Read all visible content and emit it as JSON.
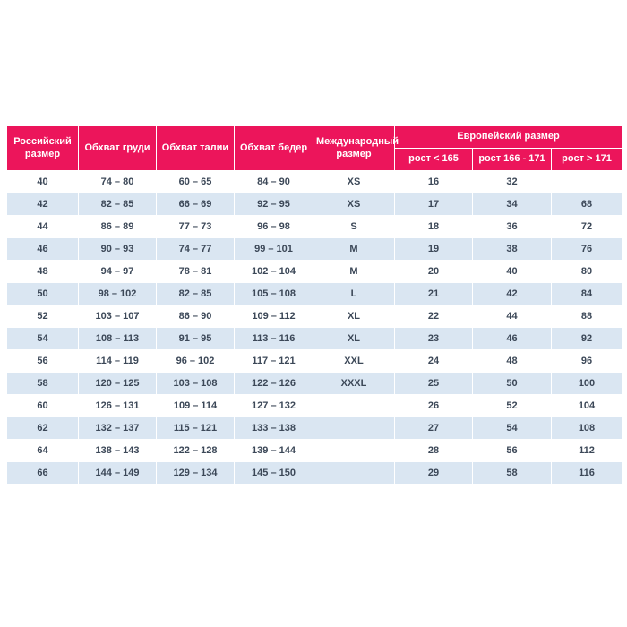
{
  "page": {
    "background": "#ffffff"
  },
  "table": {
    "colors": {
      "header_bg": "#EC155B",
      "header_text": "#ffffff",
      "row_alt_bg": "#DAE6F2",
      "row_bg": "#ffffff",
      "cell_text": "#3C4858"
    },
    "headers": {
      "russian_size": "Российский размер",
      "chest": "Обхват груди",
      "waist": "Обхват талии",
      "hips": "Обхват бедер",
      "international": "Международный размер",
      "european": "Европейский размер",
      "height_lt_165": "рост < 165",
      "height_166_171": "рост 166 - 171",
      "height_gt_171": "рост > 171"
    },
    "rows": [
      [
        "40",
        "74 – 80",
        "60 – 65",
        "84 – 90",
        "XS",
        "16",
        "32",
        ""
      ],
      [
        "42",
        "82 – 85",
        "66 – 69",
        "92 – 95",
        "XS",
        "17",
        "34",
        "68"
      ],
      [
        "44",
        "86 – 89",
        "77 – 73",
        "96 – 98",
        "S",
        "18",
        "36",
        "72"
      ],
      [
        "46",
        "90 – 93",
        "74 – 77",
        "99 – 101",
        "M",
        "19",
        "38",
        "76"
      ],
      [
        "48",
        "94 – 97",
        "78 – 81",
        "102 – 104",
        "M",
        "20",
        "40",
        "80"
      ],
      [
        "50",
        "98 – 102",
        "82 – 85",
        "105 – 108",
        "L",
        "21",
        "42",
        "84"
      ],
      [
        "52",
        "103 – 107",
        "86 – 90",
        "109 – 112",
        "XL",
        "22",
        "44",
        "88"
      ],
      [
        "54",
        "108 – 113",
        "91 – 95",
        "113 – 116",
        "XL",
        "23",
        "46",
        "92"
      ],
      [
        "56",
        "114 – 119",
        "96 – 102",
        "117 – 121",
        "XXL",
        "24",
        "48",
        "96"
      ],
      [
        "58",
        "120 – 125",
        "103 – 108",
        "122 – 126",
        "XXXL",
        "25",
        "50",
        "100"
      ],
      [
        "60",
        "126 – 131",
        "109 – 114",
        "127 – 132",
        "",
        "26",
        "52",
        "104"
      ],
      [
        "62",
        "132 – 137",
        "115 – 121",
        "133 – 138",
        "",
        "27",
        "54",
        "108"
      ],
      [
        "64",
        "138 – 143",
        "122 – 128",
        "139 – 144",
        "",
        "28",
        "56",
        "112"
      ],
      [
        "66",
        "144 – 149",
        "129 – 134",
        "145 – 150",
        "",
        "29",
        "58",
        "116"
      ]
    ]
  }
}
